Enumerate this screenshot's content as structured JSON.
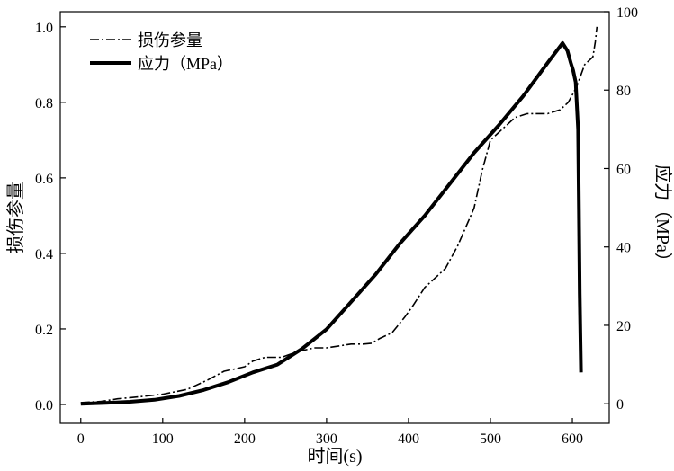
{
  "chart_data": {
    "type": "line",
    "title": "",
    "xlabel": "时间(s)",
    "ylabel_left": "损伤参量",
    "ylabel_right": "应力（MPa）",
    "xlim": [
      -25,
      645
    ],
    "ylim_left": [
      -0.05,
      1.04
    ],
    "ylim_right": [
      -5,
      100
    ],
    "x_ticks": [
      "0",
      "100",
      "200",
      "300",
      "400",
      "500",
      "600"
    ],
    "y_left_ticks": [
      "0.0",
      "0.2",
      "0.4",
      "0.6",
      "0.8",
      "1.0"
    ],
    "y_right_ticks": [
      "0",
      "20",
      "40",
      "60",
      "80",
      "100"
    ],
    "grid": false,
    "legend_position": "top-left",
    "series": [
      {
        "name": "损伤参量",
        "axis": "left",
        "style": "dash-dot",
        "color": "#000000",
        "x": [
          0,
          25,
          45,
          70,
          100,
          130,
          155,
          175,
          190,
          200,
          210,
          225,
          245,
          265,
          285,
          300,
          315,
          330,
          345,
          355,
          365,
          380,
          395,
          405,
          420,
          430,
          445,
          460,
          470,
          480,
          490,
          500,
          515,
          530,
          545,
          560,
          570,
          585,
          595,
          605,
          615,
          625,
          628,
          630
        ],
        "y": [
          0.005,
          0.008,
          0.015,
          0.02,
          0.027,
          0.04,
          0.065,
          0.088,
          0.095,
          0.1,
          0.115,
          0.125,
          0.125,
          0.14,
          0.15,
          0.15,
          0.155,
          0.16,
          0.16,
          0.162,
          0.175,
          0.19,
          0.23,
          0.26,
          0.31,
          0.33,
          0.36,
          0.42,
          0.47,
          0.52,
          0.62,
          0.7,
          0.73,
          0.76,
          0.77,
          0.77,
          0.77,
          0.78,
          0.8,
          0.84,
          0.9,
          0.92,
          0.96,
          1.0
        ]
      },
      {
        "name": "应力（MPa）",
        "axis": "right",
        "style": "solid-thick",
        "color": "#000000",
        "x": [
          0,
          30,
          60,
          90,
          120,
          150,
          180,
          210,
          240,
          270,
          300,
          330,
          360,
          390,
          420,
          450,
          480,
          510,
          540,
          570,
          588,
          594,
          598,
          601,
          604,
          607,
          608,
          609,
          610,
          610.5
        ],
        "y": [
          0,
          0.2,
          0.5,
          1.0,
          2.0,
          3.5,
          5.5,
          8,
          10,
          14,
          19,
          26,
          33,
          41,
          48,
          56,
          64,
          71,
          78.5,
          87,
          92,
          90,
          87,
          85,
          82,
          70,
          50,
          28,
          15,
          8
        ]
      }
    ]
  }
}
